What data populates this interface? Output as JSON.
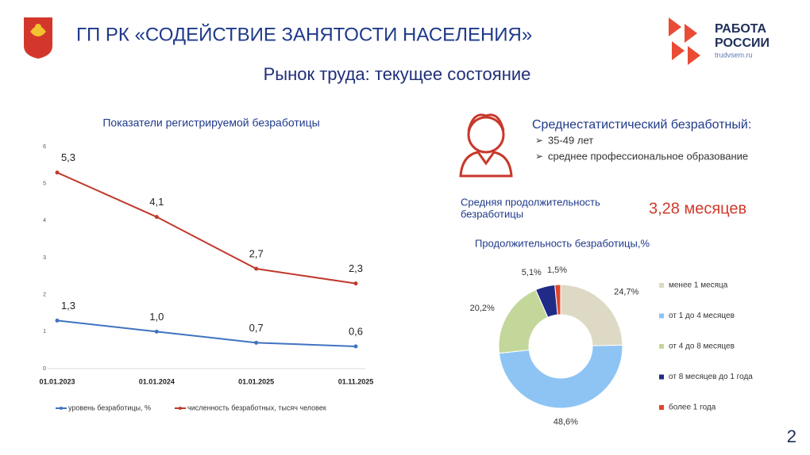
{
  "header": {
    "title": "ГП РК «СОДЕЙСТВИЕ ЗАНЯТОСТИ НАСЕЛЕНИЯ»",
    "subtitle": "Рынок труда: текущее состояние",
    "logo": {
      "lines": [
        "РАБОТА",
        "РОССИИ"
      ],
      "url": "trudvsem.ru"
    }
  },
  "profile": {
    "title": "Среднестатистический безработный:",
    "items": [
      "35-49 лет",
      "среднее профессиональное образование"
    ]
  },
  "duration": {
    "label": [
      "Средняя продолжительность",
      "безработицы"
    ],
    "value": "3,28 месяцев"
  },
  "page_number": 2,
  "chart_data": [
    {
      "type": "line",
      "title": "Показатели регистрируемой безработицы",
      "categories": [
        "01.01.2023",
        "01.01.2024",
        "01.01.2025",
        "01.11.2025"
      ],
      "series": [
        {
          "name": "уровень безработицы, %",
          "color": "#3f73c0",
          "values": [
            1.3,
            1.0,
            0.7,
            0.6
          ],
          "value_labels": [
            "1,3",
            "1,0",
            "0,7",
            "0,6"
          ]
        },
        {
          "name": "численность безработных, тысяч человек",
          "color": "#c0392b",
          "values": [
            5.3,
            4.1,
            2.7,
            2.3
          ],
          "value_labels": [
            "5,3",
            "4,1",
            "2,7",
            "2,3"
          ]
        }
      ],
      "ylim": [
        0,
        6
      ],
      "yticks": [
        0,
        1,
        2,
        3,
        4,
        5,
        6
      ],
      "grid": false,
      "legend": "bottom"
    },
    {
      "type": "donut",
      "title": "Продолжительность безработицы,%",
      "categories": [
        "менее 1 месяца",
        "от 1 до 4 месяцев",
        "от 4 до 8 месяцев",
        "от 8 месяцев до 1 года",
        "более 1 года"
      ],
      "values": [
        24.7,
        48.6,
        20.2,
        5.1,
        1.5
      ],
      "value_labels": [
        "24,7%",
        "48,6%",
        "20,2%",
        "5,1%",
        "1,5%"
      ],
      "colors": [
        "#ddd9c4",
        "#8ec4f4",
        "#c4d79b",
        "#1f2b86",
        "#e0452b"
      ],
      "legend": "right"
    }
  ]
}
